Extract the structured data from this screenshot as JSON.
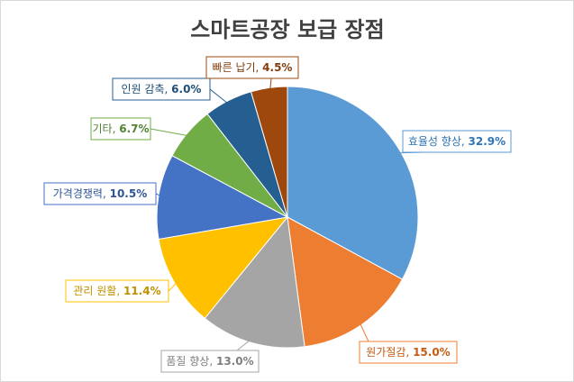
{
  "chart_data": {
    "type": "pie",
    "title": "스마트공장 보급 장점",
    "slices": [
      {
        "label": "효율성 향상",
        "value": 32.9,
        "display": "32.9%",
        "color": "#5b9bd5",
        "text_color": "#2e75b6"
      },
      {
        "label": "원가절감",
        "value": 15.0,
        "display": "15.0%",
        "color": "#ed7d31",
        "text_color": "#c55a11"
      },
      {
        "label": "품질 향상",
        "value": 13.0,
        "display": "13.0%",
        "color": "#a5a5a5",
        "text_color": "#7f7f7f"
      },
      {
        "label": "관리 원활",
        "value": 11.4,
        "display": "11.4%",
        "color": "#ffc000",
        "text_color": "#bf9000"
      },
      {
        "label": "가격경쟁력",
        "value": 10.5,
        "display": "10.5%",
        "color": "#4472c4",
        "text_color": "#2f5597"
      },
      {
        "label": "기타",
        "value": 6.7,
        "display": "6.7%",
        "color": "#70ad47",
        "text_color": "#548235"
      },
      {
        "label": "인원 감축",
        "value": 6.0,
        "display": "6.0%",
        "color": "#255e91",
        "text_color": "#1f4e79"
      },
      {
        "label": "빠른 납기",
        "value": 4.5,
        "display": "4.5%",
        "color": "#9e480e",
        "text_color": "#843c0c"
      }
    ]
  }
}
